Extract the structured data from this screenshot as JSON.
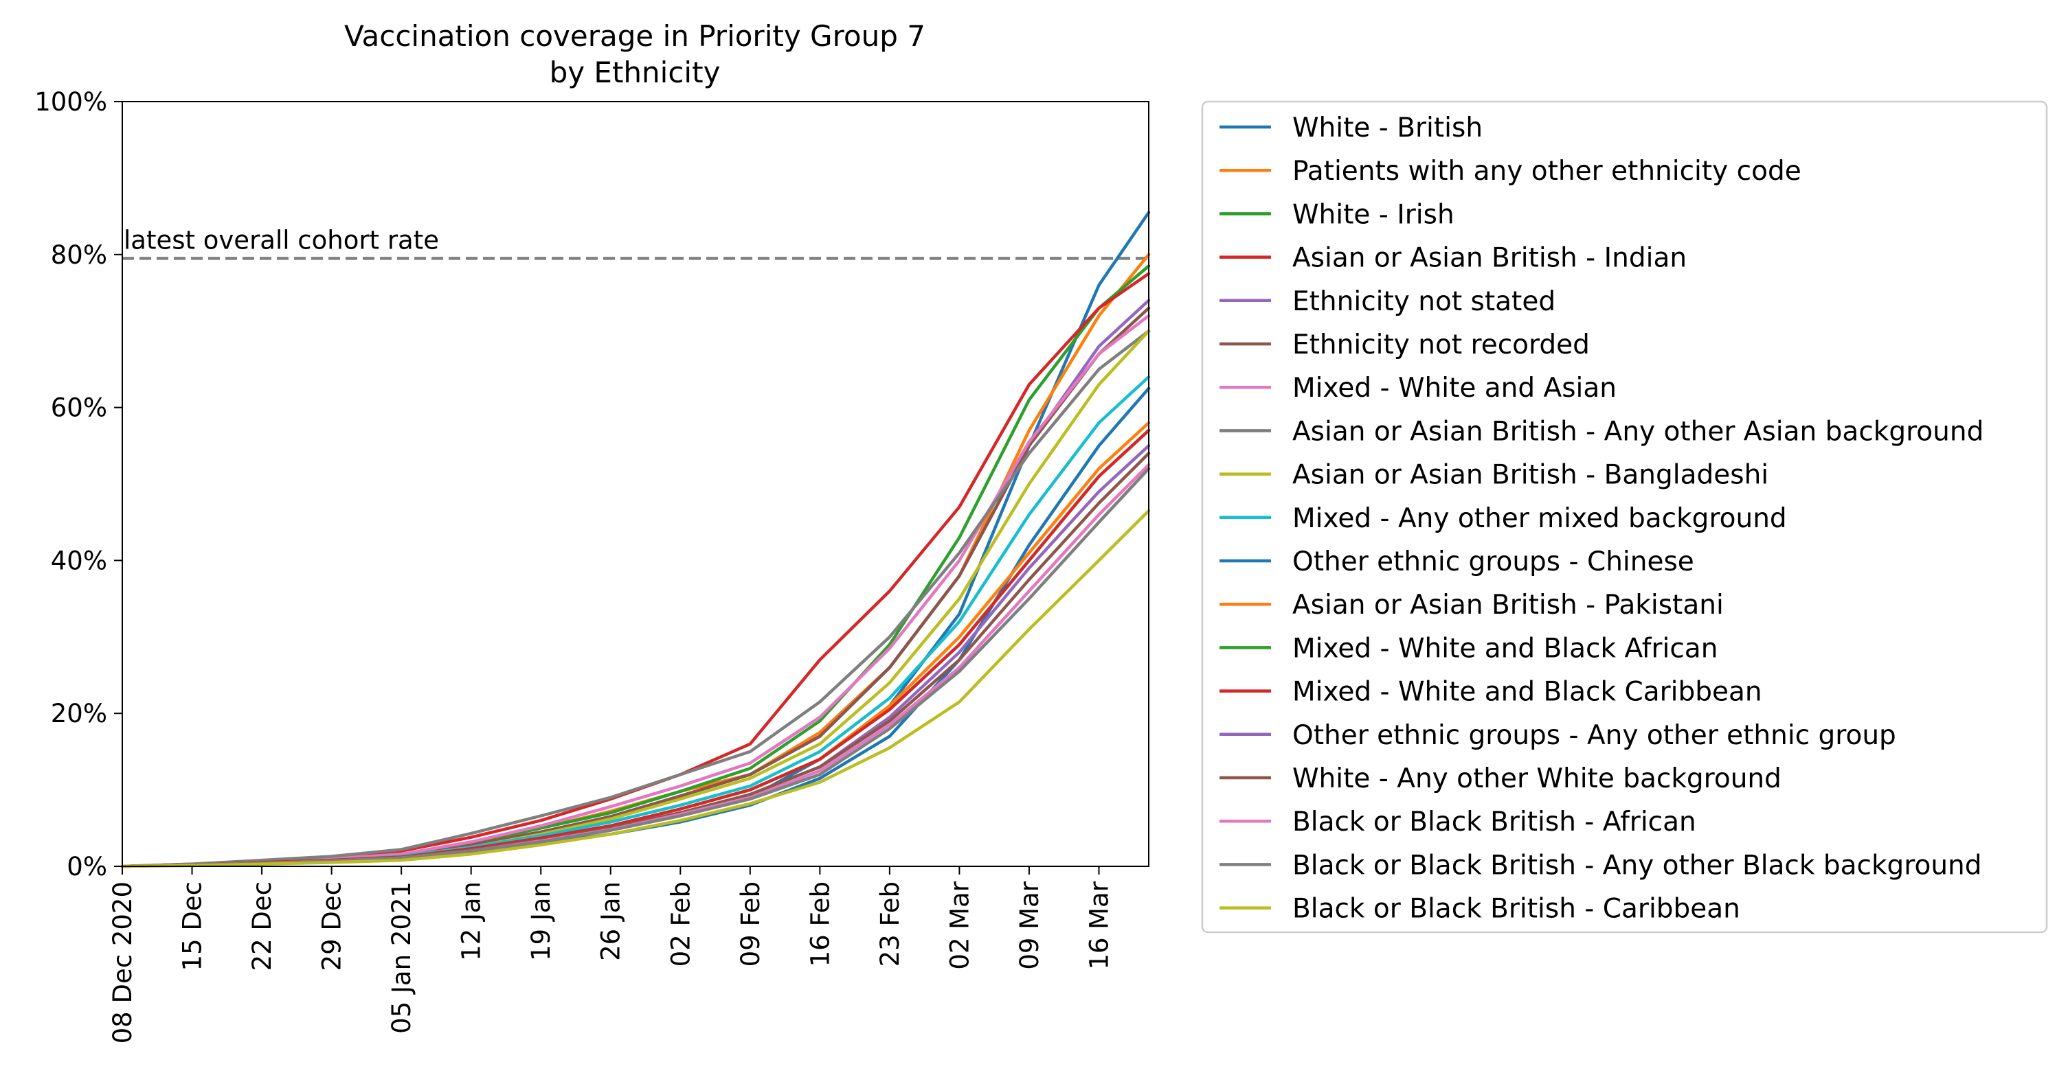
{
  "chart_data": {
    "type": "line",
    "title": "Vaccination coverage in Priority Group 7\nby Ethnicity",
    "xlabel": "",
    "ylabel": "",
    "x_range": [
      "2020-12-08",
      "2021-03-21"
    ],
    "ylim": [
      0,
      100
    ],
    "y_ticks": [
      0,
      20,
      40,
      60,
      80,
      100
    ],
    "y_tick_labels": [
      "0%",
      "20%",
      "40%",
      "60%",
      "80%",
      "100%"
    ],
    "x_ticks": [
      "2020-12-08",
      "2020-12-15",
      "2020-12-22",
      "2020-12-29",
      "2021-01-05",
      "2021-01-12",
      "2021-01-19",
      "2021-01-26",
      "2021-02-02",
      "2021-02-09",
      "2021-02-16",
      "2021-02-23",
      "2021-03-02",
      "2021-03-09",
      "2021-03-16"
    ],
    "x_tick_labels": [
      "08 Dec 2020",
      "15 Dec",
      "22 Dec",
      "29 Dec",
      "05 Jan 2021",
      "12 Jan",
      "19 Jan",
      "26 Jan",
      "02 Feb",
      "09 Feb",
      "16 Feb",
      "23 Feb",
      "02 Mar",
      "09 Mar",
      "16 Mar"
    ],
    "grid": false,
    "legend_position": "outside-right",
    "reference_line": {
      "label": "latest overall cohort rate",
      "value": 79.5,
      "color": "#808080",
      "style": "dashed"
    },
    "x": [
      "2020-12-08",
      "2020-12-15",
      "2020-12-22",
      "2020-12-29",
      "2021-01-05",
      "2021-01-12",
      "2021-01-19",
      "2021-01-26",
      "2021-02-02",
      "2021-02-09",
      "2021-02-16",
      "2021-02-23",
      "2021-03-02",
      "2021-03-09",
      "2021-03-16",
      "2021-03-21"
    ],
    "series": [
      {
        "name": "White - British",
        "color": "#1f77b4",
        "values": [
          0,
          0.2,
          0.5,
          0.8,
          1.2,
          2.2,
          3.5,
          5.0,
          6.8,
          9.0,
          14.0,
          21.0,
          33.0,
          55.0,
          76.0,
          85.5
        ]
      },
      {
        "name": "Patients with any other ethnicity code",
        "color": "#ff7f0e",
        "values": [
          0,
          0.2,
          0.6,
          1.0,
          1.5,
          3.0,
          5.0,
          7.2,
          9.8,
          12.0,
          17.5,
          26.0,
          38.0,
          57.0,
          72.0,
          80.0
        ]
      },
      {
        "name": "White - Irish",
        "color": "#2ca02c",
        "values": [
          0,
          0.2,
          0.6,
          1.0,
          1.5,
          3.0,
          5.0,
          7.0,
          9.8,
          12.8,
          19.0,
          29.0,
          43.0,
          61.0,
          73.0,
          78.5
        ]
      },
      {
        "name": "Asian or Asian British - Indian",
        "color": "#d62728",
        "values": [
          0,
          0.3,
          0.7,
          1.2,
          2.0,
          3.8,
          6.0,
          8.8,
          12.0,
          16.0,
          27.0,
          36.0,
          47.0,
          63.0,
          73.0,
          77.5
        ]
      },
      {
        "name": "Ethnicity not stated",
        "color": "#9467bd",
        "values": [
          0,
          0.2,
          0.5,
          0.9,
          1.4,
          2.8,
          4.5,
          6.5,
          9.2,
          12.0,
          17.0,
          26.0,
          38.0,
          55.0,
          68.0,
          74.0
        ]
      },
      {
        "name": "Ethnicity not recorded",
        "color": "#8c564b",
        "values": [
          0,
          0.2,
          0.5,
          0.9,
          1.4,
          2.8,
          4.5,
          6.5,
          9.2,
          12.0,
          17.0,
          26.0,
          38.0,
          55.0,
          67.0,
          73.0
        ]
      },
      {
        "name": "Mixed - White and Asian",
        "color": "#e377c2",
        "values": [
          0,
          0.2,
          0.6,
          1.0,
          1.6,
          3.2,
          5.3,
          7.8,
          10.5,
          13.5,
          19.5,
          28.5,
          40.0,
          55.5,
          67.0,
          72.0
        ]
      },
      {
        "name": "Asian or Asian British - Any other Asian background",
        "color": "#7f7f7f",
        "values": [
          0,
          0.3,
          0.8,
          1.3,
          2.2,
          4.3,
          6.6,
          9.0,
          12.0,
          15.0,
          21.5,
          30.0,
          41.0,
          54.0,
          65.0,
          70.0
        ]
      },
      {
        "name": "Asian or Asian British - Bangladeshi",
        "color": "#bcbd22",
        "values": [
          0,
          0.2,
          0.5,
          0.8,
          1.3,
          2.5,
          4.2,
          6.2,
          8.8,
          11.5,
          16.0,
          24.0,
          35.0,
          50.0,
          63.0,
          70.0
        ]
      },
      {
        "name": "Mixed - Any other mixed background",
        "color": "#17becf",
        "values": [
          0,
          0.2,
          0.5,
          0.8,
          1.3,
          2.5,
          4.0,
          5.8,
          8.0,
          10.5,
          15.0,
          22.0,
          32.0,
          46.0,
          58.0,
          64.0
        ]
      },
      {
        "name": "Other ethnic groups - Chinese",
        "color": "#1f77b4",
        "values": [
          0,
          0.2,
          0.4,
          0.7,
          1.0,
          1.9,
          3.0,
          4.2,
          5.8,
          8.0,
          11.5,
          17.0,
          27.0,
          42.0,
          55.0,
          62.5
        ]
      },
      {
        "name": "Asian or Asian British - Pakistani",
        "color": "#ff7f0e",
        "values": [
          0,
          0.2,
          0.5,
          0.8,
          1.2,
          2.3,
          3.7,
          5.3,
          7.5,
          10.0,
          14.0,
          21.0,
          30.0,
          41.0,
          52.0,
          58.0
        ]
      },
      {
        "name": "Mixed - White and Black African",
        "color": "#2ca02c",
        "values": [
          0,
          0.2,
          0.5,
          0.8,
          1.2,
          2.3,
          3.7,
          5.3,
          7.5,
          10.0,
          14.0,
          20.5,
          29.0,
          40.0,
          51.0,
          57.0
        ]
      },
      {
        "name": "Mixed - White and Black Caribbean",
        "color": "#d62728",
        "values": [
          0,
          0.2,
          0.5,
          0.8,
          1.2,
          2.3,
          3.7,
          5.3,
          7.5,
          10.0,
          14.0,
          20.5,
          29.0,
          40.0,
          51.0,
          57.0
        ]
      },
      {
        "name": "Other ethnic groups - Any other ethnic group",
        "color": "#9467bd",
        "values": [
          0,
          0.2,
          0.4,
          0.7,
          1.1,
          2.1,
          3.4,
          5.0,
          7.0,
          9.4,
          13.0,
          19.5,
          28.0,
          39.0,
          49.0,
          55.0
        ]
      },
      {
        "name": "White - Any other White background",
        "color": "#8c564b",
        "values": [
          0,
          0.2,
          0.4,
          0.7,
          1.1,
          2.1,
          3.4,
          5.0,
          7.0,
          9.4,
          13.0,
          19.0,
          27.0,
          37.5,
          47.5,
          54.0
        ]
      },
      {
        "name": "Black or Black British - African",
        "color": "#e377c2",
        "values": [
          0,
          0.2,
          0.4,
          0.7,
          1.1,
          2.0,
          3.3,
          4.8,
          6.8,
          9.0,
          12.5,
          18.5,
          26.0,
          36.0,
          46.0,
          52.5
        ]
      },
      {
        "name": "Black or Black British - Any other Black background",
        "color": "#7f7f7f",
        "values": [
          0,
          0.2,
          0.4,
          0.7,
          1.1,
          2.0,
          3.2,
          4.7,
          6.6,
          8.8,
          12.0,
          18.0,
          25.5,
          35.0,
          45.0,
          52.0
        ]
      },
      {
        "name": "Black or Black British - Caribbean",
        "color": "#bcbd22",
        "values": [
          0,
          0.1,
          0.3,
          0.5,
          0.8,
          1.6,
          2.8,
          4.2,
          6.0,
          8.2,
          11.0,
          15.5,
          21.5,
          31.0,
          40.0,
          46.5
        ]
      }
    ]
  }
}
